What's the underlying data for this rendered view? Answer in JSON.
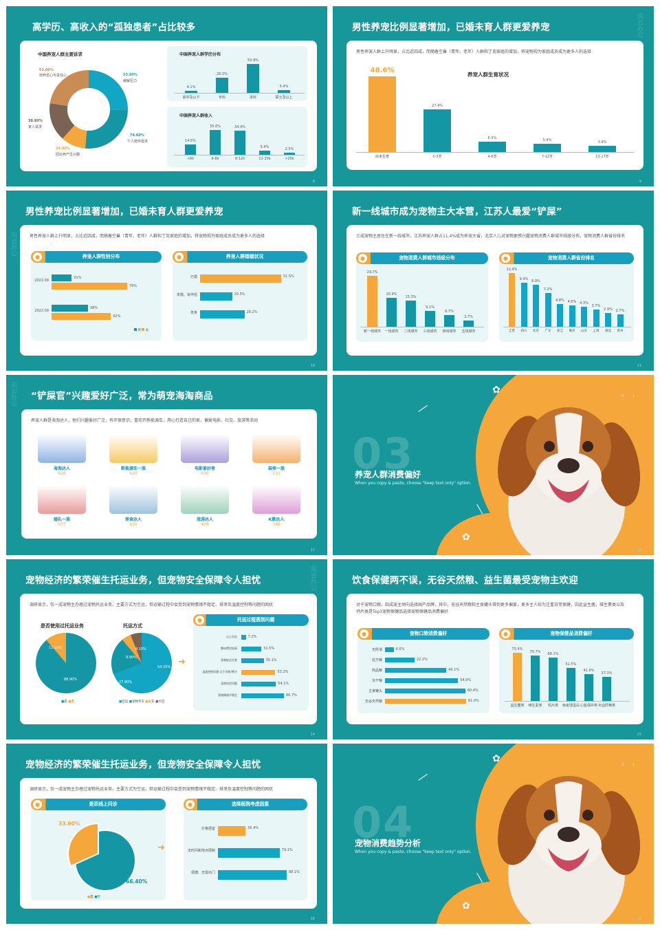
{
  "slide8": {
    "title": "高学历、高收入的“孤独患者”占比较多",
    "page": "8",
    "donut_title": "中国养宠人群主要诉求",
    "donut": [
      {
        "pct": "53.90%",
        "label": "缓解压力"
      },
      {
        "pct": "74.60%",
        "label": "个人陪伴需求"
      },
      {
        "pct": "24.90%",
        "label": "回云养产生兴趣"
      },
      {
        "pct": "38.80%",
        "label": "家人需求"
      },
      {
        "pct": "61.00%",
        "label": "培养爱心与责任心"
      }
    ],
    "edu_title": "中国养宠人群学历分布",
    "edu": [
      {
        "cat": "高中及以下",
        "val": "4.1%",
        "v": 4.1
      },
      {
        "cat": "专科",
        "val": "26.5%",
        "v": 26.5
      },
      {
        "cat": "本科",
        "val": "50.9%",
        "v": 50.9
      },
      {
        "cat": "硕士及以上",
        "val": "5.4%",
        "v": 5.4
      }
    ],
    "inc_title": "中国养宠人群收入",
    "inc": [
      {
        "cat": "<6k",
        "val": "14.5%",
        "v": 14.5
      },
      {
        "cat": "6-8k",
        "val": "35.0%",
        "v": 35.0
      },
      {
        "cat": "8-12k",
        "val": "34.4%",
        "v": 34.4
      },
      {
        "cat": "12-20k",
        "val": "5.4%",
        "v": 5.4
      },
      {
        "cat": ">20k",
        "val": "2.5%",
        "v": 2.5
      }
    ]
  },
  "slide9": {
    "title": "男性养宠比例显著增加，已婚未育人群更爱养宠",
    "page": "9",
    "intro": "男性养宠人群上升明显，占比近四成，而随着空巢（青年、老年）人群和丁克家庭的增加，将宠物视为家庭成员成为更多人的选择",
    "chart_title": "养宠人群生育状况",
    "bars": [
      {
        "cat": "尚未生育",
        "val": "48.6%",
        "v": 48.6
      },
      {
        "cat": "0-3岁",
        "val": "27.4%",
        "v": 27.4
      },
      {
        "cat": "4-6岁",
        "val": "6.5%",
        "v": 6.5
      },
      {
        "cat": "7-12岁",
        "val": "5.4%",
        "v": 5.4
      },
      {
        "cat": "13-17岁",
        "val": "3.9%",
        "v": 3.9
      }
    ]
  },
  "slide10": {
    "title": "男性养宠比例显著增加，已婚未育人群更爱养宠",
    "page": "10",
    "intro": "男性养宠人群上升明显，占比近四成，而随着空巢（青年、老年）人群和丁克家庭的增加，将宠物视为家庭成员成为更多人的选择",
    "left_tab": "养宠人群性别分布",
    "right_tab": "养宠人群婚姻状况",
    "gender": [
      {
        "year": "2022.09",
        "male": "21%",
        "female": "79%",
        "m": 21,
        "f": 79
      },
      {
        "year": "2022.09",
        "male": "38%",
        "female": "62%",
        "m": 38,
        "f": 62
      }
    ],
    "legend_m": "男",
    "legend_f": "女",
    "marital": [
      {
        "cat": "已婚",
        "val": "51.5%",
        "v": 51.5
      },
      {
        "cat": "未婚、有伴侣",
        "val": "20.3%",
        "v": 20.3
      },
      {
        "cat": "单身",
        "val": "28.2%",
        "v": 28.2
      }
    ]
  },
  "slide11": {
    "title": "新一线城市成为宠物主大本营，江苏人最爱“铲屎”",
    "page": "11",
    "intro": "三成宠物主居住在新一线城市，江苏养宠人群占11.4%成为养宠大省，北京人儿对宠物更感兴趣宠物消费人群城市线级分布，宠物消费人群省份排名",
    "left_tab": "宠物消费人群城市线级分布",
    "right_tab": "宠物消费人群省份排名",
    "city": [
      {
        "cat": "新一线城市",
        "val": "29.7%",
        "v": 29.7
      },
      {
        "cat": "一线城市",
        "val": "16.9%",
        "v": 16.9
      },
      {
        "cat": "二线城市",
        "val": "15.3%",
        "v": 15.3
      },
      {
        "cat": "三线城市",
        "val": "9.1%",
        "v": 9.1
      },
      {
        "cat": "四线城市",
        "val": "6.7%",
        "v": 6.7
      },
      {
        "cat": "五线城市",
        "val": "3.7%",
        "v": 3.7
      }
    ],
    "prov": [
      {
        "cat": "江苏",
        "val": "11.4%",
        "v": 11.4
      },
      {
        "cat": "四川",
        "val": "9.4%",
        "v": 9.4
      },
      {
        "cat": "北京",
        "val": "8.9%",
        "v": 8.9
      },
      {
        "cat": "广东",
        "val": "7.2%",
        "v": 7.2
      },
      {
        "cat": "浙江",
        "val": "4.8%",
        "v": 4.8
      },
      {
        "cat": "重庆",
        "val": "4.6%",
        "v": 4.6
      },
      {
        "cat": "山东",
        "val": "4.3%",
        "v": 4.3
      },
      {
        "cat": "上海",
        "val": "3.7%",
        "v": 3.7
      },
      {
        "cat": "湖北",
        "val": "2.9%",
        "v": 2.9
      },
      {
        "cat": "贵州",
        "val": "2.7%",
        "v": 2.7
      }
    ]
  },
  "slide12": {
    "title": "“铲屎官”兴趣爱好广泛，常为萌宠海淘商品",
    "page": "12",
    "intro": "养宠人群是海淘达人，他们兴趣爱好广泛，有环保意识，喜欢开新能源车，用心打造自己的家，偏爱电影、社交、旅游等活动",
    "items": [
      {
        "name": "海淘达人",
        "num": "826"
      },
      {
        "name": "新能源车一族",
        "num": "620"
      },
      {
        "name": "电影爱好者",
        "num": "606"
      },
      {
        "name": "装修一族",
        "num": "510"
      },
      {
        "name": "婚礼一族",
        "num": "507"
      },
      {
        "name": "美食达人",
        "num": "430"
      },
      {
        "name": "旅游达人",
        "num": "409"
      },
      {
        "name": "K歌达人",
        "num": "348"
      }
    ]
  },
  "slide13": {
    "num": "03",
    "title": "养宠人群消费偏好",
    "sub": "When you copy & paste, choose \"keep text only\" option.",
    "page": "13"
  },
  "slide14": {
    "title": "宠物经济的繁荣催生托运业务，但宠物安全保障令人担忧",
    "page": "14",
    "intro": "调研显示，仅一成宠物主办理过宠物托运业务，主要方式为空运，但运输过程中会受到宠物情绪不稳定、排泄及温度控制等问题的困扰",
    "pie1_title": "是否使用过托运业务",
    "pie1": [
      {
        "label": "是",
        "pct": "11.10%"
      },
      {
        "label": "否",
        "pct": "88.90%"
      }
    ],
    "pie2_title": "托运方式",
    "pie2": [
      {
        "label": "空运",
        "pct": "54.10%"
      },
      {
        "label": "宠物专车",
        "pct": "27.90%"
      },
      {
        "label": "火车",
        "pct": "9.90%"
      },
      {
        "label": "大巴",
        "pct": "8.10%"
      }
    ],
    "right_tab": "托运过程遇到问题",
    "problems": [
      {
        "cat": "以上均无",
        "val": "7.2%",
        "v": 7.2
      },
      {
        "cat": "整体费用较高",
        "val": "31.5%",
        "v": 31.5
      },
      {
        "cat": "宠物缺乏饮食",
        "val": "35.1%",
        "v": 35.1
      },
      {
        "cat": "温度控制问题 过于闷热/寒冷",
        "val": "53.2%",
        "v": 53.2
      },
      {
        "cat": "宠物排泄问题",
        "val": "54.1%",
        "v": 54.1
      },
      {
        "cat": "宠物情绪不稳定",
        "val": "66.7%",
        "v": 66.7
      }
    ]
  },
  "slide15": {
    "title": "饮食保健两不误，无谷天然粮、益生菌最受宠物主欢迎",
    "page": "15",
    "intro": "对于宠物口粮，四成宠主倾向选择国产品牌，其中，无谷天然粮和主食罐头得到更多偏爱，更多主人较为注重日常保健，因此益生菌，维生素类以及钙片类是Top3宠物保健品选择宠物保健品消费偏好",
    "left_tab": "宠物口粮消费偏好",
    "right_tab": "宠物保健品消费偏好",
    "food": [
      {
        "cat": "无所谓",
        "val": "6.6%",
        "v": 6.6
      },
      {
        "cat": "处方粮",
        "val": "22.2%",
        "v": 22.2
      },
      {
        "cat": "商品粮",
        "val": "46.1%",
        "v": 46.1
      },
      {
        "cat": "冻干粮",
        "val": "54.9%",
        "v": 54.9
      },
      {
        "cat": "主食罐头",
        "val": "60.4%",
        "v": 60.4
      },
      {
        "cat": "无谷天然粮",
        "val": "61.0%",
        "v": 61.0
      }
    ],
    "health": [
      {
        "cat": "益生菌类",
        "val": "75.4%",
        "v": 75.4
      },
      {
        "cat": "维生素类",
        "val": "70.7%",
        "v": 70.7
      },
      {
        "cat": "钙片类",
        "val": "68.1%",
        "v": 68.1
      },
      {
        "cat": "免疫球蛋白",
        "val": "51.5%",
        "v": 51.5
      },
      {
        "cat": "心脏保护类",
        "val": "41.9%",
        "v": 41.9
      },
      {
        "cat": "补血肝精类",
        "val": "37.3%",
        "v": 37.3
      }
    ]
  },
  "slide16": {
    "title": "宠物经济的繁荣催生托运业务，但宠物安全保障令人担忧",
    "page": "16",
    "intro": "调研显示，仅一成宠物主办理过宠物托运业务，主要方式为空运，但运输过程中会受到宠物情绪不稳定、排泄及温度控制等问题的困扰",
    "left_tab": "是否线上问诊",
    "pie": [
      {
        "label": "是",
        "pct": "33.60%"
      },
      {
        "label": "否",
        "pct": "66.40%"
      }
    ],
    "right_tab": "选择医院考虑因素",
    "factors": [
      {
        "cat": "价格便宜",
        "val": "35.4%",
        "v": 35.4
      },
      {
        "cat": "无时间和地点限制",
        "val": "79.1%",
        "v": 79.1
      },
      {
        "cat": "便捷、无需出门",
        "val": "88.1%",
        "v": 88.1
      }
    ]
  },
  "slide17": {
    "num": "04",
    "title": "宠物消费趋势分析",
    "sub": "When you copy & paste, choose \"keep text only\" option.",
    "page": "17"
  },
  "watermark": "风云办公",
  "colors": {
    "teal": "#17979a",
    "orange": "#f5a73b",
    "blue": "#12a6c4",
    "brown": "#7a6352"
  }
}
